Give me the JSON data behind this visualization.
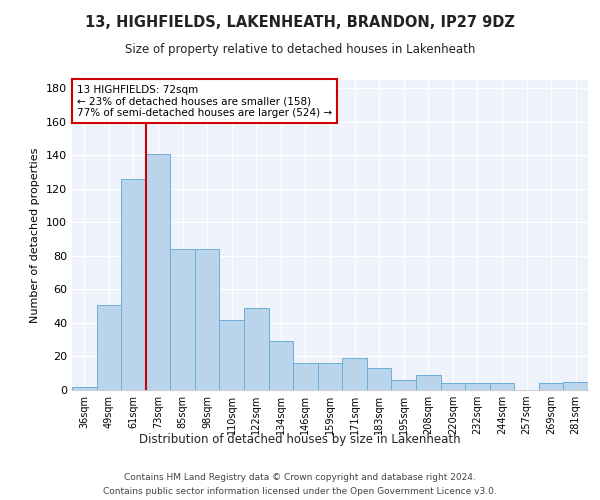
{
  "title": "13, HIGHFIELDS, LAKENHEATH, BRANDON, IP27 9DZ",
  "subtitle": "Size of property relative to detached houses in Lakenheath",
  "xlabel": "Distribution of detached houses by size in Lakenheath",
  "ylabel": "Number of detached properties",
  "categories": [
    "36sqm",
    "49sqm",
    "61sqm",
    "73sqm",
    "85sqm",
    "98sqm",
    "110sqm",
    "122sqm",
    "134sqm",
    "146sqm",
    "159sqm",
    "171sqm",
    "183sqm",
    "195sqm",
    "208sqm",
    "220sqm",
    "232sqm",
    "244sqm",
    "257sqm",
    "269sqm",
    "281sqm"
  ],
  "values": [
    2,
    51,
    126,
    141,
    84,
    84,
    42,
    49,
    29,
    16,
    16,
    19,
    13,
    6,
    9,
    4,
    4,
    4,
    0,
    4,
    5
  ],
  "bar_color": "#bad4eb",
  "bar_edge_color": "#6aaed6",
  "property_line_label": "13 HIGHFIELDS: 72sqm",
  "annotation_line1": "← 23% of detached houses are smaller (158)",
  "annotation_line2": "77% of semi-detached houses are larger (524) →",
  "annotation_box_color": "#ffffff",
  "annotation_box_edge": "#cc0000",
  "vline_color": "#cc0000",
  "ylim": [
    0,
    185
  ],
  "yticks": [
    0,
    20,
    40,
    60,
    80,
    100,
    120,
    140,
    160,
    180
  ],
  "bg_color": "#eef2fa",
  "footer1": "Contains HM Land Registry data © Crown copyright and database right 2024.",
  "footer2": "Contains public sector information licensed under the Open Government Licence v3.0."
}
